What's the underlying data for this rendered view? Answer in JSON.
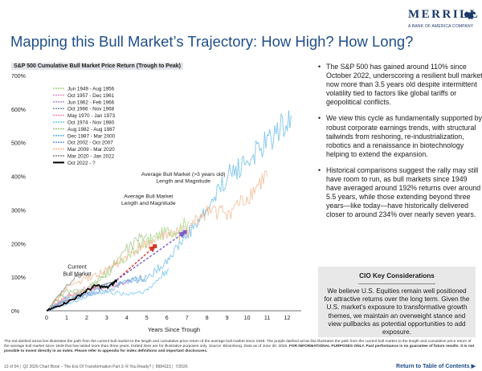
{
  "header": {
    "brand": "MERRILL",
    "brand_sub": "A BANK OF AMERICA COMPANY",
    "title": "Mapping this Bull Market’s Trajectory: How High? How Long?",
    "subtitle": "S&P 500 Cumulative Bull Market Price Return (Trough to Peak)"
  },
  "chart_data": {
    "type": "line",
    "title": "S&P 500 Cumulative Bull Market Price Return (Trough to Peak)",
    "xlabel": "Years Since Trough",
    "ylabel": "",
    "xlim": [
      0,
      12.7
    ],
    "ylim": [
      0,
      700
    ],
    "x_ticks": [
      "0",
      "1",
      "2",
      "3",
      "4",
      "5",
      "6",
      "7",
      "8",
      "9",
      "10",
      "11",
      "12"
    ],
    "y_ticks": [
      "0%",
      "100%",
      "200%",
      "300%",
      "400%",
      "500%",
      "600%",
      "700%"
    ],
    "grid": false,
    "legend_position": "top-left",
    "series": [
      {
        "name": "Jun 1949 - Aug 1956",
        "color": "#9bd37a",
        "style": "dotted",
        "points": [
          [
            0,
            0
          ],
          [
            1,
            42
          ],
          [
            2,
            63
          ],
          [
            3,
            108
          ],
          [
            4,
            158
          ],
          [
            5,
            205
          ],
          [
            6,
            235
          ],
          [
            6.5,
            241
          ],
          [
            7.1,
            267
          ]
        ]
      },
      {
        "name": "Oct 1957 - Dec 1961",
        "color": "#e58fbf",
        "style": "dotted",
        "points": [
          [
            0,
            0
          ],
          [
            1,
            42
          ],
          [
            2,
            67
          ],
          [
            3,
            72
          ],
          [
            4,
            86
          ],
          [
            4.2,
            86
          ]
        ]
      },
      {
        "name": "Jun 1962 - Feb 1966",
        "color": "#b48fcf",
        "style": "dotted",
        "points": [
          [
            0,
            0
          ],
          [
            1,
            30
          ],
          [
            2,
            52
          ],
          [
            3,
            74
          ],
          [
            3.7,
            80
          ]
        ]
      },
      {
        "name": "Oct 1966 - Nov 1968",
        "color": "#7f8fa6",
        "style": "dotted",
        "points": [
          [
            0,
            0
          ],
          [
            1,
            32
          ],
          [
            2.1,
            48
          ]
        ]
      },
      {
        "name": "May 1970 - Jan 1973",
        "color": "#ff8da8",
        "style": "dotted",
        "points": [
          [
            0,
            0
          ],
          [
            1,
            42
          ],
          [
            2,
            58
          ],
          [
            2.7,
            74
          ]
        ]
      },
      {
        "name": "Oct 1974 - Nov 1980",
        "color": "#66c2e8",
        "style": "dotted",
        "points": [
          [
            0,
            0
          ],
          [
            1,
            38
          ],
          [
            2,
            52
          ],
          [
            3,
            55
          ],
          [
            4,
            50
          ],
          [
            5,
            60
          ],
          [
            6.1,
            126
          ]
        ]
      },
      {
        "name": "Aug 1982 - Aug 1987",
        "color": "#9ec27f",
        "style": "dotted",
        "points": [
          [
            0,
            0
          ],
          [
            1,
            58
          ],
          [
            2,
            57
          ],
          [
            3,
            115
          ],
          [
            4,
            185
          ],
          [
            5,
            229
          ]
        ]
      },
      {
        "name": "Dec 1987 - Mar 2000",
        "color": "#5fb7e5",
        "style": "dotted",
        "points": [
          [
            0,
            0
          ],
          [
            1,
            20
          ],
          [
            2,
            45
          ],
          [
            3,
            75
          ],
          [
            4,
            90
          ],
          [
            5,
            95
          ],
          [
            6,
            150
          ],
          [
            7,
            225
          ],
          [
            8,
            300
          ],
          [
            9,
            400
          ],
          [
            10,
            445
          ],
          [
            11,
            500
          ],
          [
            12.2,
            582
          ]
        ]
      },
      {
        "name": "Oct 2002 - Oct 2007",
        "color": "#6f9fd8",
        "style": "dotted",
        "points": [
          [
            0,
            0
          ],
          [
            1,
            30
          ],
          [
            2,
            50
          ],
          [
            3,
            60
          ],
          [
            4,
            85
          ],
          [
            5,
            101
          ]
        ]
      },
      {
        "name": "Mar 2009 - Mar 2020",
        "color": "#f2b48a",
        "style": "dotted",
        "points": [
          [
            0,
            0
          ],
          [
            1,
            70
          ],
          [
            2,
            95
          ],
          [
            3,
            120
          ],
          [
            4,
            160
          ],
          [
            5,
            200
          ],
          [
            6,
            225
          ],
          [
            7,
            235
          ],
          [
            8,
            300
          ],
          [
            9,
            290
          ],
          [
            10,
            330
          ],
          [
            11,
            400
          ]
        ]
      },
      {
        "name": "Mar 2020 - Jan 2022",
        "color": "#7f7f7f",
        "style": "dotted",
        "points": [
          [
            0,
            0
          ],
          [
            1,
            75
          ],
          [
            1.8,
            114
          ]
        ]
      },
      {
        "name": "Oct 2022 - ?",
        "color": "#000000",
        "style": "solid",
        "points": [
          [
            0,
            0
          ],
          [
            0.5,
            12
          ],
          [
            1,
            25
          ],
          [
            1.5,
            40
          ],
          [
            2,
            60
          ],
          [
            2.5,
            75
          ],
          [
            3,
            68
          ],
          [
            3.3,
            80
          ],
          [
            3.5,
            92
          ]
        ]
      }
    ],
    "annotations": [
      {
        "text": "Current Bull Market",
        "x": 0.6,
        "y": 75
      },
      {
        "text": "Average Bull Market Length and Magnitude",
        "x": 5.4,
        "y": 192
      },
      {
        "text": "Average Bull Market (>3 years old) Length and Magnitude",
        "x": 6.9,
        "y": 234
      }
    ],
    "arrows": [
      {
        "color": "#d0392d",
        "from": [
          3.5,
          92
        ],
        "to": [
          5.4,
          192
        ]
      },
      {
        "color": "#7a5fc7",
        "from": [
          3.5,
          92
        ],
        "to": [
          6.9,
          234
        ]
      }
    ]
  },
  "bullets": [
    "The S&P 500 has gained around 110% since October 2022, underscoring a resilient bull market now more than 3.5 years old despite intermittent volatility tied to factors like global tariffs or geopolitical conflicts.",
    "We view this cycle as fundamentally supported by robust corporate earnings trends, with structural tailwinds from reshoring, re-industrialization, robotics and a renaissance in biotechnology helping to extend the expansion.",
    "Historical comparisons suggest the rally may still have room to run, as bull markets since 1949 have averaged around 192% returns over around 5.5 years, while those extending beyond three years—like today—have historically delivered closer to around 234% over nearly seven years."
  ],
  "cio": {
    "title": "CIO Key Considerations",
    "body": "We believe U.S. Equities remain well positioned for attractive returns over the long term. Given the U.S. market’s exposure to transformative growth themes, we maintain an overweight stance and view pullbacks as potential opportunities to add exposure."
  },
  "disclaimer": {
    "text": "The red dashed arrow line illustrates the path from the current bull market to the length and cumulative price return of the average bull market since 1949. The purple dashed arrow line illustrates the path from the current bull market to the length and cumulative price return of the average bull market since 1949 that has lasted more than three years. Dotted lines are for illustrative purposes only. Source: Bloomberg. Data as of June 30, 2026.",
    "bold": "FOR INFORMATIONAL PURPOSES ONLY. Past performance is no guarantee of future results. It is not possible to invest directly in an index. Please refer to appendix for index definitions and important disclosures."
  },
  "footer": {
    "page": "13 of 54",
    "doc": "Q2 2026 Chart Book – The Era Of Transformation Part 3: R You Ready?",
    "code": "8984115",
    "date": "7/2026",
    "return_link": "Return to Table of Contents ▶"
  }
}
